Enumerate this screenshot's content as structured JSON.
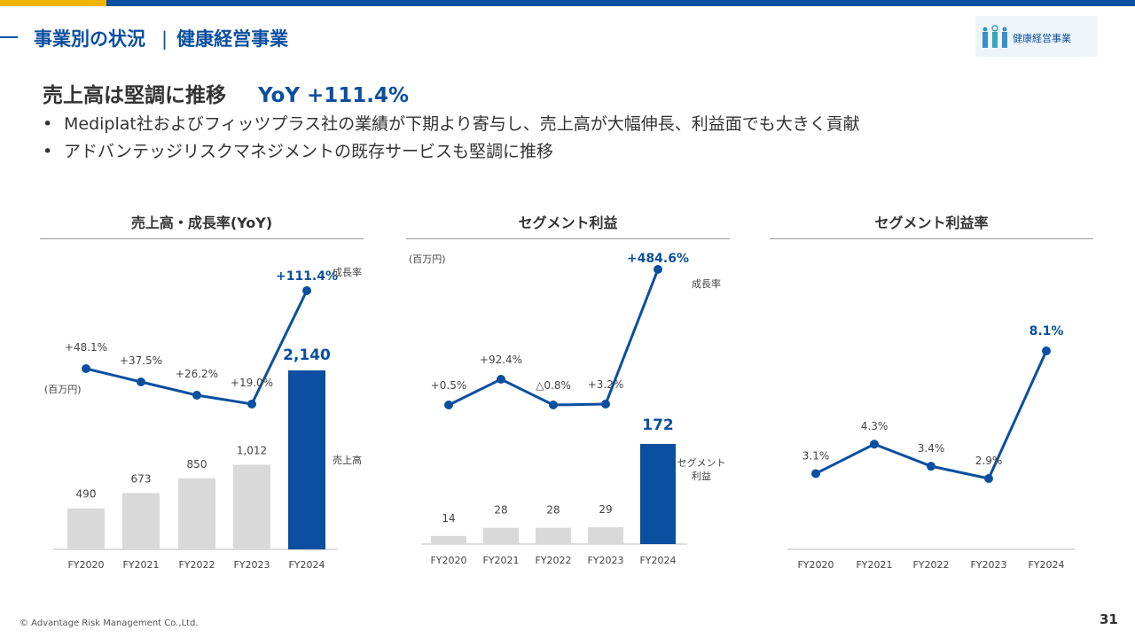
{
  "header": {
    "title": "事業別の状況",
    "subtitle": "健康経営事業",
    "badge_label": "健康経営事業"
  },
  "headline": {
    "text": "売上高は堅調に推移",
    "yoy": "YoY +111.4%"
  },
  "bullets": [
    "Mediplat社およびフィッツプラス社の業績が下期より寄与し、売上高が大幅伸長、利益面でも大きく貢献",
    "アドバンテッジリスクマネジメントの既存サービスも堅調に推移"
  ],
  "colors": {
    "brand_blue": "#0b4fa0",
    "brand_yellow": "#f2b600",
    "bar_gray": "#d9d9d9",
    "text_dark": "#333333"
  },
  "chart_titles": [
    "売上高・成長率(YoY)",
    "セグメント利益",
    "セグメント利益率"
  ],
  "chart_data": [
    {
      "type": "bar+line",
      "title": "売上高・成長率(YoY)",
      "unit_label": "(百万円)",
      "categories": [
        "FY2020",
        "FY2021",
        "FY2022",
        "FY2023",
        "FY2024"
      ],
      "bar_series_label": "売上高",
      "bar_values": [
        490,
        673,
        850,
        1012,
        2140
      ],
      "bar_labels": [
        "490",
        "673",
        "850",
        "1,012",
        "2,140"
      ],
      "line_series_label": "成長率",
      "line_values": [
        48.1,
        37.5,
        26.2,
        19.0,
        111.4
      ],
      "line_labels": [
        "+48.1%",
        "+37.5%",
        "+26.2%",
        "+19.0%",
        "+111.4%"
      ]
    },
    {
      "type": "bar+line",
      "title": "セグメント利益",
      "unit_label": "(百万円)",
      "categories": [
        "FY2020",
        "FY2021",
        "FY2022",
        "FY2023",
        "FY2024"
      ],
      "bar_series_label": "セグメント利益",
      "bar_values": [
        14,
        28,
        28,
        29,
        172
      ],
      "bar_labels": [
        "14",
        "28",
        "28",
        "29",
        "172"
      ],
      "line_series_label": "成長率",
      "line_values": [
        0.5,
        92.4,
        -0.8,
        3.2,
        484.6
      ],
      "line_labels": [
        "+0.5%",
        "+92.4%",
        "△0.8%",
        "+3.2%",
        "+484.6%"
      ]
    },
    {
      "type": "line",
      "title": "セグメント利益率",
      "categories": [
        "FY2020",
        "FY2021",
        "FY2022",
        "FY2023",
        "FY2024"
      ],
      "values": [
        3.1,
        4.3,
        3.4,
        2.9,
        8.1
      ],
      "labels": [
        "3.1%",
        "4.3%",
        "3.4%",
        "2.9%",
        "8.1%"
      ]
    }
  ],
  "footer": {
    "copyright": "© Advantage Risk Management Co.,Ltd.",
    "page": "31"
  }
}
